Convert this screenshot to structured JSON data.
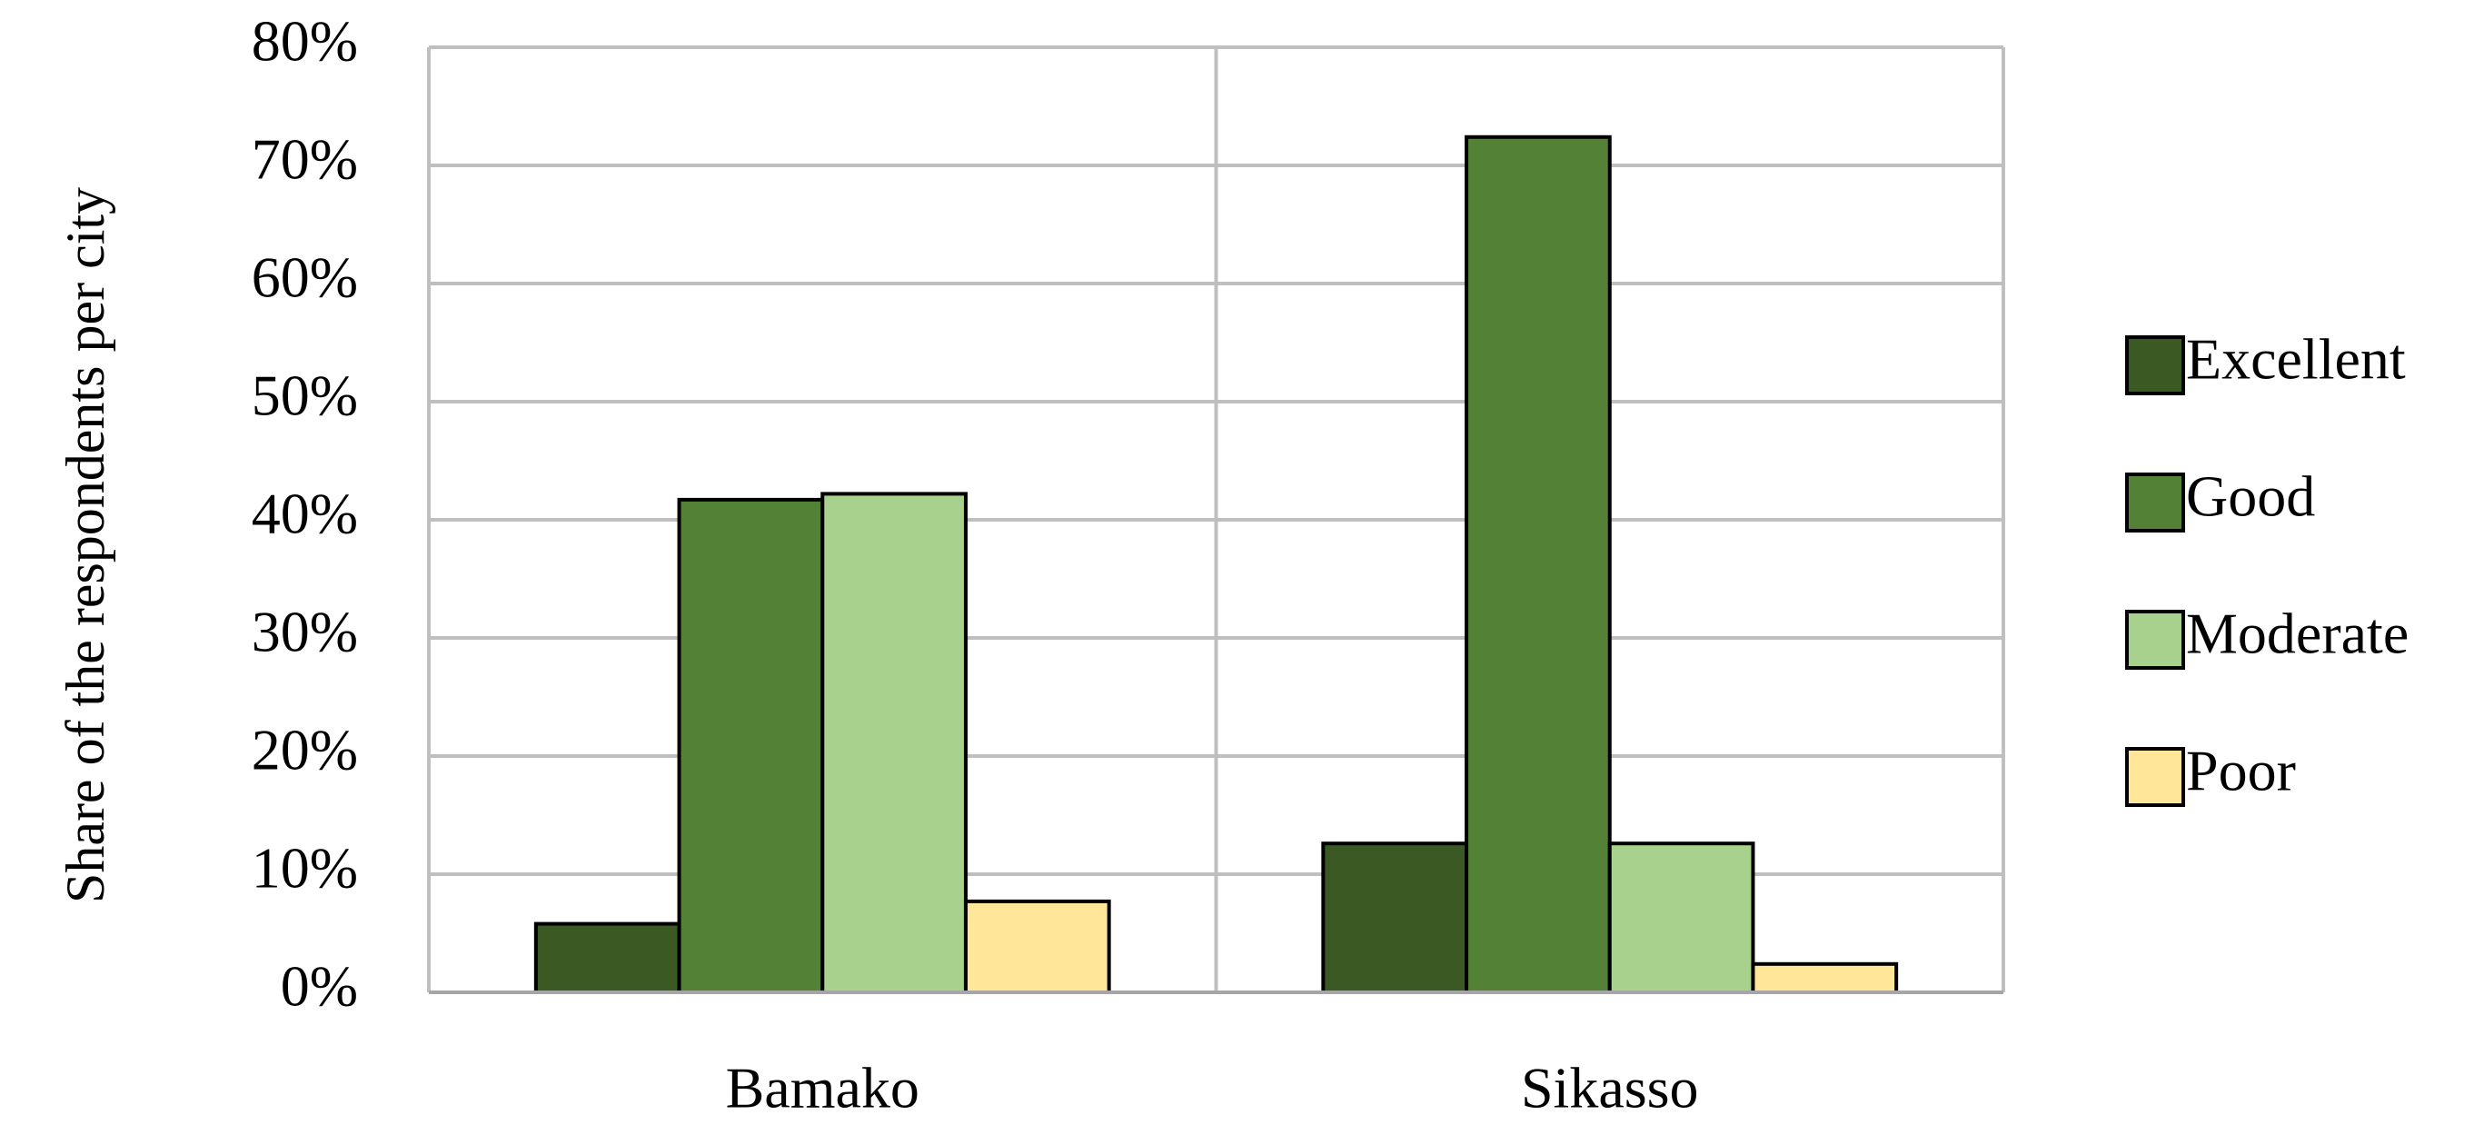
{
  "chart_data": {
    "type": "bar",
    "y_label": "Share of the respondents per city",
    "categories": [
      "Bamako",
      "Sikasso"
    ],
    "series": [
      {
        "name": "Excellent",
        "color": "#3b5a23",
        "values": [
          5.8,
          12.6
        ]
      },
      {
        "name": "Good",
        "color": "#538135",
        "values": [
          41.7,
          72.4
        ]
      },
      {
        "name": "Moderate",
        "color": "#a9d18e",
        "values": [
          42.2,
          12.6
        ]
      },
      {
        "name": "Poor",
        "color": "#ffe699",
        "values": [
          7.7,
          2.4
        ]
      }
    ],
    "ylim": [
      0,
      80
    ],
    "yticks": [
      {
        "value": 0,
        "label": "0%"
      },
      {
        "value": 10,
        "label": "10%"
      },
      {
        "value": 20,
        "label": "20%"
      },
      {
        "value": 30,
        "label": "30%"
      },
      {
        "value": 40,
        "label": "40%"
      },
      {
        "value": 50,
        "label": "50%"
      },
      {
        "value": 60,
        "label": "60%"
      },
      {
        "value": 70,
        "label": "70%"
      },
      {
        "value": 80,
        "label": "80%"
      }
    ],
    "grid": true,
    "legend": "right"
  }
}
